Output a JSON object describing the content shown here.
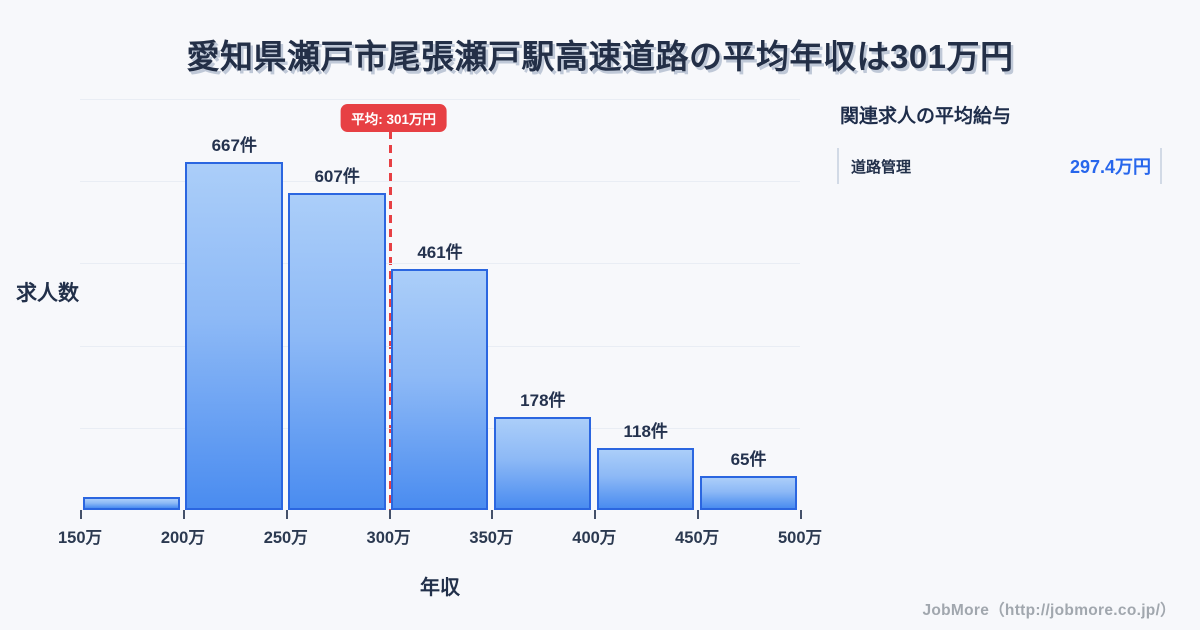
{
  "title": "愛知県瀬戸市尾張瀬戸駅高速道路の平均年収は301万円",
  "chart_data": {
    "type": "bar",
    "subtype": "histogram",
    "title": "",
    "xlabel": "年収",
    "ylabel": "求人数",
    "bin_edges": [
      "150万",
      "200万",
      "250万",
      "300万",
      "350万",
      "400万",
      "450万",
      "500万"
    ],
    "values": [
      25,
      667,
      607,
      461,
      178,
      118,
      65
    ],
    "bar_labels": [
      "",
      "667件",
      "607件",
      "461件",
      "178件",
      "118件",
      "65件"
    ],
    "ylim": [
      0,
      788
    ],
    "grid": true,
    "average_line": {
      "value": 301,
      "axis_min": 150,
      "axis_max": 500,
      "label": "平均: 301万円"
    },
    "colors": {
      "bar_fill_top": "#abcef9",
      "bar_fill_bottom": "#4a8cf0",
      "bar_border": "#2b66e0",
      "average_red": "#e74044",
      "gridline": "#e9edf4",
      "text_dark": "#22304a",
      "background": "#f7f8fb"
    }
  },
  "panel": {
    "heading": "関連求人の平均給与",
    "items": [
      {
        "label": "道路管理",
        "value": "297.4万円"
      }
    ]
  },
  "footer": {
    "credit": "JobMore（http://jobmore.co.jp/）"
  }
}
